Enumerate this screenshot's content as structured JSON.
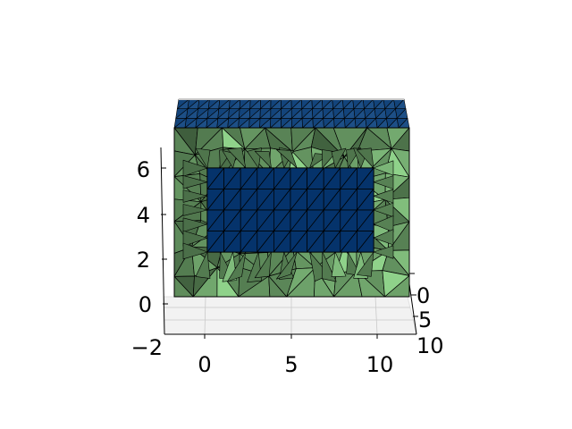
{
  "chart_data": {
    "type": "3d-mesh",
    "title": "",
    "xlabel": "",
    "ylabel": "",
    "zlabel": "",
    "axes": {
      "x": {
        "ticks": [
          "0",
          "5",
          "10"
        ],
        "range": [
          -2,
          12
        ]
      },
      "y": {
        "ticks": [
          "0",
          "5",
          "10"
        ],
        "range": [
          -1,
          10
        ]
      },
      "z": {
        "ticks": [
          "−2",
          "0",
          "2",
          "4",
          "6"
        ],
        "range": [
          -2,
          7
        ]
      }
    },
    "grid": true,
    "mesh": {
      "box_extent": {
        "x": [
          -1.8,
          11.4
        ],
        "z": [
          0,
          6.3
        ]
      },
      "inner_window": {
        "x": [
          0,
          9.7
        ],
        "z": [
          2.6,
          6.0
        ]
      }
    }
  },
  "colors": {
    "box_face_dark": "#3f5e3d",
    "box_face_light": "#8fd28a",
    "window_fill": "#05336b",
    "top_face": "#1d4f86",
    "edge": "#000000",
    "pane": "#f2f2f2",
    "grid": "#c9c9c9"
  }
}
